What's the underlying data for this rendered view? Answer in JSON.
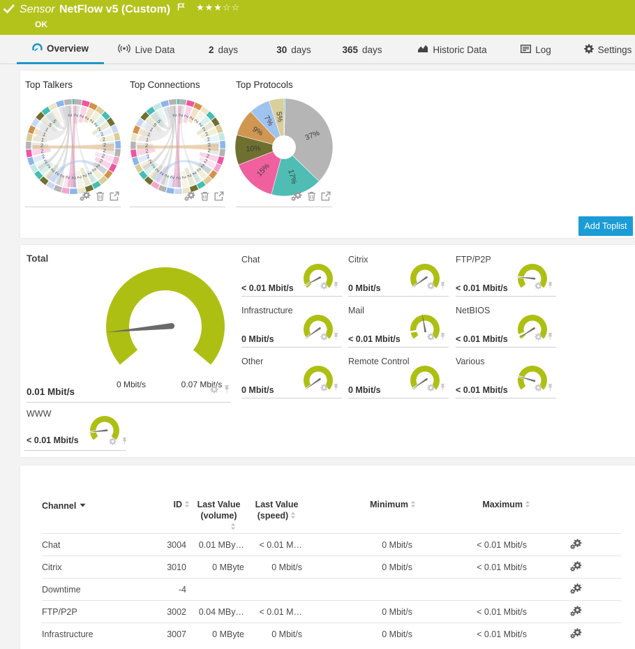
{
  "colors": {
    "header_green": "#b4c31c",
    "gauge_green": "#aebf13",
    "accent_blue": "#1b9cd6",
    "tab_underline_blue": "#1e96c8",
    "needle_gray": "#6a6a6a",
    "page_bg": "#f3f3f3"
  },
  "header": {
    "kind": "Sensor",
    "title": "NetFlow v5 (Custom)",
    "status": "OK",
    "stars_filled": 3,
    "stars_total": 5
  },
  "tabs": [
    {
      "id": "overview",
      "icon": "gauge-icon",
      "label": "Overview",
      "active": true
    },
    {
      "id": "live-data",
      "icon": "broadcast-icon",
      "label": "Live Data",
      "active": false
    },
    {
      "id": "2-days",
      "num": "2",
      "label": "days",
      "active": false
    },
    {
      "id": "30-days",
      "num": "30",
      "label": "days",
      "active": false
    },
    {
      "id": "365-days",
      "num": "365",
      "label": "days",
      "active": false
    },
    {
      "id": "historic-data",
      "icon": "area-chart-icon",
      "label": "Historic Data",
      "active": false
    },
    {
      "id": "log",
      "icon": "log-icon",
      "label": "Log",
      "active": false
    },
    {
      "id": "settings",
      "icon": "gear-icon",
      "label": "Settings",
      "active": false
    }
  ],
  "toplists": {
    "add_button_label": "Add Toplist",
    "items": [
      {
        "title": "Top Talkers"
      },
      {
        "title": "Top Connections"
      },
      {
        "title": "Top Protocols"
      }
    ]
  },
  "chart_data": [
    {
      "type": "chord",
      "title": "Top Talkers",
      "outer_radius": 68,
      "ring_thickness": 7.5,
      "segment_count": 36,
      "sliver_color": "#45bdb2",
      "palette": [
        "#b3b3b3",
        "#ee55a0",
        "#d2914c",
        "#d9cc96",
        "#45bdb2",
        "#6e7030",
        "#8cb6e9",
        "#f2a6cb",
        "#c9d8f2",
        "#ece5c6",
        "#c2e8e2",
        "#e8c7e0"
      ],
      "pale_palette": [
        "#e6e6e6",
        "#f9cfe3",
        "#f2dfc2",
        "#f2ecd4",
        "#d4efeb",
        "#e6e6cf",
        "#dbe8f8",
        "#fbe0ee",
        "#e8eef9",
        "#f6f2e2",
        "#e4f5f1",
        "#f8e6f2"
      ],
      "segment_color_idx": [
        0,
        1,
        2,
        3,
        4,
        5,
        8,
        3,
        6,
        0,
        7,
        1,
        2,
        3,
        4,
        5,
        9,
        6,
        7,
        0,
        8,
        5,
        4,
        10,
        6,
        1,
        0,
        3,
        2,
        8,
        5,
        4,
        9,
        6,
        0
      ],
      "labels_cw": [
        "2",
        "2",
        "2",
        "2",
        "2",
        "2",
        "2",
        "2",
        "2",
        "2",
        "2",
        "2",
        "2",
        "2",
        "2",
        "2",
        "2",
        "2",
        "2",
        "2",
        "2",
        "2",
        "2",
        "2",
        "2",
        "2",
        "2",
        "1",
        "1",
        "1",
        "5",
        "5",
        "",
        "",
        "2"
      ],
      "chords": [
        {
          "a1": 88,
          "w1": 2.5,
          "a2": 268,
          "w2": 6,
          "color": "#e470aa",
          "op": 0.42
        },
        {
          "a1": 181,
          "w1": 3,
          "a2": 359,
          "w2": 5,
          "color": "#d8a567",
          "op": 0.5
        },
        {
          "a1": 97,
          "w1": 1.6,
          "a2": 213,
          "w2": 3,
          "color": "#b0b0b0",
          "op": 0.4
        },
        {
          "a1": 100,
          "w1": 1.6,
          "a2": 247,
          "w2": 3,
          "color": "#b0b0b0",
          "op": 0.4
        },
        {
          "a1": 94,
          "w1": 1.6,
          "a2": 232,
          "w2": 3,
          "color": "#c0c0c0",
          "op": 0.4
        },
        {
          "a1": 96,
          "w1": 1.5,
          "a2": 272,
          "w2": 2,
          "color": "#a8a8a8",
          "op": 0.45
        },
        {
          "a1": 85,
          "w1": 1.6,
          "a2": 300,
          "w2": 3,
          "color": "#c8c8c8",
          "op": 0.35
        },
        {
          "a1": 238,
          "w1": 4,
          "a2": 322,
          "w2": 4,
          "color": "#9cc0ea",
          "op": 0.45
        },
        {
          "a1": 103,
          "w1": 7,
          "a2": 155,
          "w2": 16,
          "color": "#e0e0e0",
          "op": 0.65
        },
        {
          "a1": 102,
          "w1": 4,
          "a2": 127,
          "w2": 6,
          "color": "#d0d0d0",
          "op": 0.55
        }
      ]
    },
    {
      "type": "chord",
      "title": "Top Connections",
      "outer_radius": 68,
      "ring_thickness": 7.5,
      "segment_count": 36,
      "sliver_color": "#45bdb2",
      "palette": [
        "#b3b3b3",
        "#ee55a0",
        "#d2914c",
        "#d9cc96",
        "#45bdb2",
        "#6e7030",
        "#8cb6e9",
        "#f2a6cb",
        "#c9d8f2",
        "#ece5c6",
        "#c2e8e2",
        "#e8c7e0"
      ],
      "pale_palette": [
        "#e6e6e6",
        "#f9cfe3",
        "#f2dfc2",
        "#f2ecd4",
        "#d4efeb",
        "#e6e6cf",
        "#dbe8f8",
        "#fbe0ee",
        "#e8eef9",
        "#f6f2e2",
        "#e4f5f1",
        "#f8e6f2"
      ],
      "segment_color_idx": [
        0,
        1,
        2,
        9,
        4,
        5,
        3,
        10,
        6,
        0,
        1,
        7,
        2,
        3,
        4,
        5,
        9,
        8,
        6,
        0,
        7,
        5,
        4,
        3,
        6,
        1,
        0,
        9,
        2,
        8,
        5,
        4,
        10,
        6,
        0
      ],
      "labels_cw": [
        "2",
        "2",
        "2",
        "2",
        "2",
        "2",
        "2",
        "2",
        "2",
        "2",
        "2",
        "2",
        "2",
        "2",
        "2",
        "2",
        "2",
        "2",
        "2",
        "2",
        "2",
        "2",
        "2",
        "2",
        "2",
        "2",
        "2",
        "1",
        "1",
        "1",
        "5",
        "5",
        "",
        "",
        "2"
      ],
      "chords": [
        {
          "a1": 88,
          "w1": 2.5,
          "a2": 268,
          "w2": 6,
          "color": "#e470aa",
          "op": 0.42
        },
        {
          "a1": 181,
          "w1": 3,
          "a2": 359,
          "w2": 5,
          "color": "#d8a567",
          "op": 0.5
        },
        {
          "a1": 97,
          "w1": 1.6,
          "a2": 213,
          "w2": 3,
          "color": "#b0b0b0",
          "op": 0.4
        },
        {
          "a1": 100,
          "w1": 1.6,
          "a2": 247,
          "w2": 3,
          "color": "#b0b0b0",
          "op": 0.4
        },
        {
          "a1": 94,
          "w1": 1.6,
          "a2": 232,
          "w2": 3,
          "color": "#c0c0c0",
          "op": 0.4
        },
        {
          "a1": 96,
          "w1": 1.5,
          "a2": 272,
          "w2": 2,
          "color": "#a8a8a8",
          "op": 0.45
        },
        {
          "a1": 85,
          "w1": 1.6,
          "a2": 300,
          "w2": 3,
          "color": "#c8c8c8",
          "op": 0.35
        },
        {
          "a1": 238,
          "w1": 4,
          "a2": 322,
          "w2": 4,
          "color": "#9cc0ea",
          "op": 0.45
        },
        {
          "a1": 103,
          "w1": 7,
          "a2": 155,
          "w2": 16,
          "color": "#e0e0e0",
          "op": 0.65
        },
        {
          "a1": 102,
          "w1": 4,
          "a2": 127,
          "w2": 6,
          "color": "#d0d0d0",
          "op": 0.55
        }
      ]
    },
    {
      "type": "donut",
      "title": "Top Protocols",
      "outer_radius": 70,
      "hole_radius": 17,
      "label_radius": 44,
      "slices": [
        {
          "value": 0.4,
          "color": "#52bfc0",
          "label": ""
        },
        {
          "value": 37,
          "color": "#b5b5b5",
          "label": "37%"
        },
        {
          "value": 17,
          "color": "#4fbdb4",
          "label": "17%"
        },
        {
          "value": 15,
          "color": "#f0609e",
          "label": "15%"
        },
        {
          "value": 10,
          "color": "#6f7030",
          "label": "10%"
        },
        {
          "value": 9,
          "color": "#cf9752",
          "label": "9%"
        },
        {
          "value": 7,
          "color": "#9fc3ef",
          "label": "7%"
        },
        {
          "value": 5,
          "color": "#d9cf9b",
          "label": "5%"
        }
      ]
    }
  ],
  "gauges": {
    "arc_start_deg": 220,
    "arc_end_deg": -40,
    "total": {
      "name": "Total",
      "value": "0.01 Mbit/s",
      "min_label": "0 Mbit/s",
      "max_label": "0.07 Mbit/s",
      "needle_deg": 185.5,
      "notch_deg": null
    },
    "cells": [
      {
        "name": "Chat",
        "value": "< 0.01 Mbit/s",
        "needle_deg": 208,
        "notch_deg": 208
      },
      {
        "name": "Citrix",
        "value": "0 Mbit/s",
        "needle_deg": 215,
        "notch_deg": 215
      },
      {
        "name": "FTP/P2P",
        "value": "< 0.01 Mbit/s",
        "needle_deg": 174,
        "notch_deg": 174
      },
      {
        "name": "Infrastructure",
        "value": "0 Mbit/s",
        "needle_deg": 215,
        "notch_deg": 215
      },
      {
        "name": "Mail",
        "value": "< 0.01 Mbit/s",
        "needle_deg": 100,
        "notch_deg": 190
      },
      {
        "name": "NetBIOS",
        "value": "< 0.01 Mbit/s",
        "needle_deg": 212,
        "notch_deg": 203
      },
      {
        "name": "Other",
        "value": "0 Mbit/s",
        "needle_deg": 215,
        "notch_deg": 215
      },
      {
        "name": "Remote Control",
        "value": "0 Mbit/s",
        "needle_deg": 214,
        "notch_deg": 214
      },
      {
        "name": "Various",
        "value": "< 0.01 Mbit/s",
        "needle_deg": 164,
        "notch_deg": 164
      },
      {
        "name": "WWW",
        "value": "< 0.01 Mbit/s",
        "needle_deg": 186,
        "notch_deg": 186
      }
    ]
  },
  "table": {
    "headers": {
      "channel": "Channel",
      "id": "ID",
      "last_value_volume_line1": "Last Value",
      "last_value_volume_line2": "(volume)",
      "last_value_speed_line1": "Last Value",
      "last_value_speed_line2": "(speed)",
      "minimum": "Minimum",
      "maximum": "Maximum"
    },
    "rows": [
      {
        "channel": "Chat",
        "id": "3004",
        "vol": "0.01 MBy…",
        "speed": "< 0.01 M…",
        "min": "0 Mbit/s",
        "max": "< 0.01 Mbit/s"
      },
      {
        "channel": "Citrix",
        "id": "3010",
        "vol": "0 MByte",
        "speed": "0 Mbit/s",
        "min": "0 Mbit/s",
        "max": "< 0.01 Mbit/s"
      },
      {
        "channel": "Downtime",
        "id": "-4",
        "vol": "",
        "speed": "",
        "min": "",
        "max": ""
      },
      {
        "channel": "FTP/P2P",
        "id": "3002",
        "vol": "0.04 MBy…",
        "speed": "< 0.01 M…",
        "min": "0 Mbit/s",
        "max": "< 0.01 Mbit/s"
      },
      {
        "channel": "Infrastructure",
        "id": "3007",
        "vol": "0 MByte",
        "speed": "0 Mbit/s",
        "min": "0 Mbit/s",
        "max": "< 0.01 Mbit/s"
      }
    ]
  }
}
